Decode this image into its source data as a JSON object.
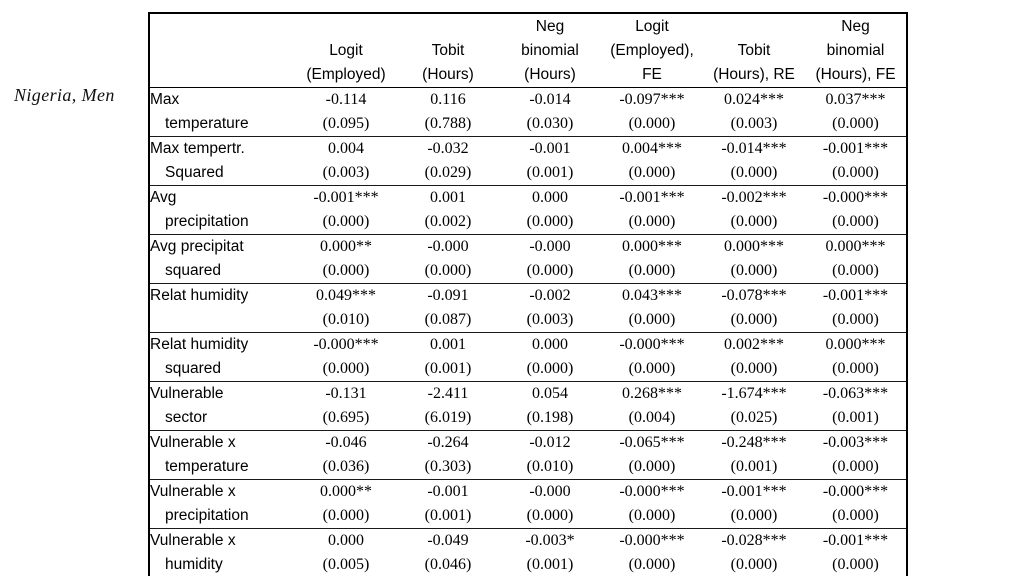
{
  "section_label": "Nigeria, Men",
  "table": {
    "columns": [
      {
        "id": "logit-employed",
        "label": "Logit (Employed)",
        "lines": [
          "Logit",
          "(Employed)"
        ]
      },
      {
        "id": "tobit-hours",
        "label": "Tobit (Hours)",
        "lines": [
          "Tobit",
          "(Hours)"
        ]
      },
      {
        "id": "negbin-hours",
        "label": "Neg binomial (Hours)",
        "lines": [
          "Neg",
          "binomial",
          "(Hours)"
        ]
      },
      {
        "id": "logit-employed-fe",
        "label": "Logit (Employed), FE",
        "lines": [
          "Logit",
          "(Employed),",
          "FE"
        ]
      },
      {
        "id": "tobit-hours-re",
        "label": "Tobit (Hours), RE",
        "lines": [
          "Tobit",
          "(Hours), RE"
        ]
      },
      {
        "id": "negbin-hours-fe",
        "label": "Neg binomial (Hours), FE",
        "lines": [
          "Neg",
          "binomial",
          "(Hours), FE"
        ]
      }
    ],
    "rows": [
      {
        "id": "max-temperature",
        "variable": "Max temperature",
        "label_lines": [
          "Max",
          "temperature"
        ],
        "coefs": [
          "-0.114",
          "0.116",
          "-0.014",
          "-0.097***",
          "0.024***",
          "0.037***"
        ],
        "ses": [
          "(0.095)",
          "(0.788)",
          "(0.030)",
          "(0.000)",
          "(0.003)",
          "(0.000)"
        ]
      },
      {
        "id": "max-temperature-squared",
        "variable": "Max tempertr. Squared",
        "label_lines": [
          "Max tempertr.",
          "Squared"
        ],
        "coefs": [
          "0.004",
          "-0.032",
          "-0.001",
          "0.004***",
          "-0.014***",
          "-0.001***"
        ],
        "ses": [
          "(0.003)",
          "(0.029)",
          "(0.001)",
          "(0.000)",
          "(0.000)",
          "(0.000)"
        ]
      },
      {
        "id": "avg-precipitation",
        "variable": "Avg precipitation",
        "label_lines": [
          "Avg",
          "precipitation"
        ],
        "coefs": [
          "-0.001***",
          "0.001",
          "0.000",
          "-0.001***",
          "-0.002***",
          "-0.000***"
        ],
        "ses": [
          "(0.000)",
          "(0.002)",
          "(0.000)",
          "(0.000)",
          "(0.000)",
          "(0.000)"
        ]
      },
      {
        "id": "avg-precipitation-squared",
        "variable": "Avg precipitat squared",
        "label_lines": [
          "Avg precipitat",
          "squared"
        ],
        "coefs": [
          "0.000**",
          "-0.000",
          "-0.000",
          "0.000***",
          "0.000***",
          "0.000***"
        ],
        "ses": [
          "(0.000)",
          "(0.000)",
          "(0.000)",
          "(0.000)",
          "(0.000)",
          "(0.000)"
        ]
      },
      {
        "id": "relat-humidity",
        "variable": "Relat humidity",
        "label_lines": [
          "Relat humidity",
          ""
        ],
        "coefs": [
          "0.049***",
          "-0.091",
          "-0.002",
          "0.043***",
          "-0.078***",
          "-0.001***"
        ],
        "ses": [
          "(0.010)",
          "(0.087)",
          "(0.003)",
          "(0.000)",
          "(0.000)",
          "(0.000)"
        ]
      },
      {
        "id": "relat-humidity-squared",
        "variable": "Relat humidity squared",
        "label_lines": [
          "Relat humidity",
          "squared"
        ],
        "coefs": [
          "-0.000***",
          "0.001",
          "0.000",
          "-0.000***",
          "0.002***",
          "0.000***"
        ],
        "ses": [
          "(0.000)",
          "(0.001)",
          "(0.000)",
          "(0.000)",
          "(0.000)",
          "(0.000)"
        ]
      },
      {
        "id": "vulnerable-sector",
        "variable": "Vulnerable sector",
        "label_lines": [
          "Vulnerable",
          "sector"
        ],
        "coefs": [
          "-0.131",
          "-2.411",
          "0.054",
          "0.268***",
          "-1.674***",
          "-0.063***"
        ],
        "ses": [
          "(0.695)",
          "(6.019)",
          "(0.198)",
          "(0.004)",
          "(0.025)",
          "(0.001)"
        ]
      },
      {
        "id": "vulnerable-x-temperature",
        "variable": "Vulnerable x temperature",
        "label_lines": [
          "Vulnerable x",
          "temperature"
        ],
        "coefs": [
          "-0.046",
          "-0.264",
          "-0.012",
          "-0.065***",
          "-0.248***",
          "-0.003***"
        ],
        "ses": [
          "(0.036)",
          "(0.303)",
          "(0.010)",
          "(0.000)",
          "(0.001)",
          "(0.000)"
        ]
      },
      {
        "id": "vulnerable-x-precipitation",
        "variable": "Vulnerable x precipitation",
        "label_lines": [
          "Vulnerable x",
          "precipitation"
        ],
        "coefs": [
          "0.000**",
          "-0.001",
          "-0.000",
          "-0.000***",
          "-0.001***",
          "-0.000***"
        ],
        "ses": [
          "(0.000)",
          "(0.001)",
          "(0.000)",
          "(0.000)",
          "(0.000)",
          "(0.000)"
        ]
      },
      {
        "id": "vulnerable-x-humidity",
        "variable": "Vulnerable x humidity",
        "label_lines": [
          "Vulnerable x",
          "humidity"
        ],
        "coefs": [
          "0.000",
          "-0.049",
          "-0.003*",
          "-0.000***",
          "-0.028***",
          "-0.001***"
        ],
        "ses": [
          "(0.005)",
          "(0.046)",
          "(0.001)",
          "(0.000)",
          "(0.000)",
          "(0.000)"
        ]
      }
    ]
  }
}
